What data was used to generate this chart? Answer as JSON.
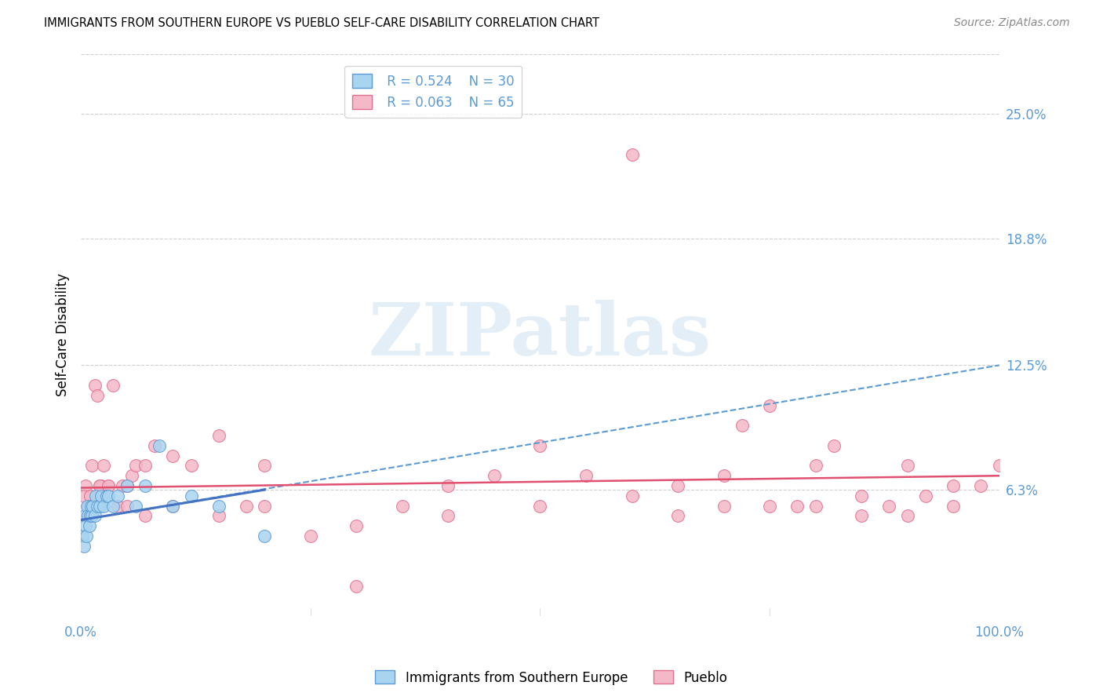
{
  "title": "IMMIGRANTS FROM SOUTHERN EUROPE VS PUEBLO SELF-CARE DISABILITY CORRELATION CHART",
  "source": "Source: ZipAtlas.com",
  "ylabel": "Self-Care Disability",
  "ytick_values": [
    25.0,
    18.8,
    12.5,
    6.3
  ],
  "xlim": [
    0.0,
    100.0
  ],
  "ylim": [
    0.0,
    28.0
  ],
  "legend1_R": "0.524",
  "legend1_N": "30",
  "legend2_R": "0.063",
  "legend2_N": "65",
  "color_blue_fill": "#a8d4f0",
  "color_blue_edge": "#5b9bd5",
  "color_blue_line": "#4472c4",
  "color_pink_fill": "#f4b8c8",
  "color_pink_edge": "#e07090",
  "color_pink_line": "#e05070",
  "color_grid": "#d0d0d0",
  "color_tick": "#5b9bd5",
  "watermark_text": "ZIPatlas",
  "background_color": "#ffffff",
  "blue_scatter_x": [
    0.2,
    0.3,
    0.4,
    0.5,
    0.6,
    0.7,
    0.8,
    0.9,
    1.0,
    1.1,
    1.2,
    1.3,
    1.5,
    1.6,
    1.8,
    2.0,
    2.2,
    2.5,
    2.8,
    3.0,
    3.5,
    4.0,
    5.0,
    6.0,
    7.0,
    8.5,
    10.0,
    12.0,
    15.0,
    20.0
  ],
  "blue_scatter_y": [
    4.0,
    3.5,
    5.0,
    4.5,
    4.0,
    5.5,
    5.0,
    4.5,
    5.0,
    5.5,
    5.0,
    5.5,
    5.0,
    6.0,
    5.5,
    5.5,
    6.0,
    5.5,
    6.0,
    6.0,
    5.5,
    6.0,
    6.5,
    5.5,
    6.5,
    8.5,
    5.5,
    6.0,
    5.5,
    4.0
  ],
  "pink_scatter_x": [
    0.5,
    0.8,
    1.0,
    1.2,
    1.5,
    1.8,
    2.0,
    2.2,
    2.5,
    3.0,
    3.5,
    4.0,
    4.5,
    5.0,
    5.5,
    6.0,
    7.0,
    8.0,
    10.0,
    12.0,
    15.0,
    18.0,
    20.0,
    25.0,
    30.0,
    35.0,
    40.0,
    45.0,
    50.0,
    55.0,
    60.0,
    65.0,
    70.0,
    72.0,
    75.0,
    78.0,
    80.0,
    82.0,
    85.0,
    88.0,
    90.0,
    92.0,
    95.0,
    98.0,
    100.0,
    0.3,
    1.0,
    2.0,
    3.0,
    5.0,
    7.0,
    10.0,
    15.0,
    20.0,
    30.0,
    40.0,
    50.0,
    60.0,
    65.0,
    70.0,
    75.0,
    80.0,
    85.0,
    90.0,
    95.0
  ],
  "pink_scatter_y": [
    6.5,
    5.5,
    6.0,
    7.5,
    11.5,
    11.0,
    6.5,
    6.5,
    7.5,
    6.5,
    11.5,
    5.5,
    6.5,
    6.5,
    7.0,
    7.5,
    7.5,
    8.5,
    8.0,
    7.5,
    9.0,
    5.5,
    7.5,
    4.0,
    1.5,
    5.5,
    6.5,
    7.0,
    8.5,
    7.0,
    23.0,
    6.5,
    7.0,
    9.5,
    10.5,
    5.5,
    7.5,
    8.5,
    6.0,
    5.5,
    7.5,
    6.0,
    6.5,
    6.5,
    7.5,
    6.0,
    6.0,
    6.5,
    6.5,
    5.5,
    5.0,
    5.5,
    5.0,
    5.5,
    4.5,
    5.0,
    5.5,
    6.0,
    5.0,
    5.5,
    5.5,
    5.5,
    5.0,
    5.0,
    5.5
  ],
  "blue_line_x0": 0.0,
  "blue_line_x1": 100.0,
  "blue_line_y0": 4.8,
  "blue_line_y1": 12.5,
  "blue_solid_x0": 0.0,
  "blue_solid_x1": 20.0,
  "blue_solid_y0": 4.8,
  "blue_solid_y1": 6.3,
  "pink_line_x0": 0.0,
  "pink_line_x1": 100.0,
  "pink_line_y0": 6.4,
  "pink_line_y1": 7.0
}
